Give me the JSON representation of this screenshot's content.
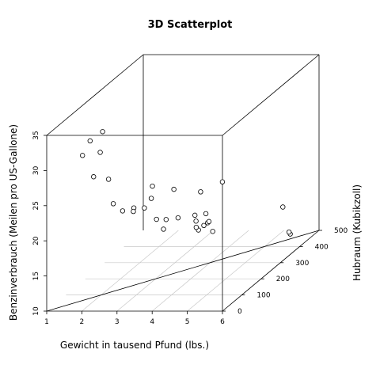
{
  "chart_data": {
    "type": "scatter",
    "projection": "3d",
    "title": "3D Scatterplot",
    "xlabel": "Gewicht in tausend Pfund (lbs.)",
    "ylabel": "Benzinverbrauch (Meilen pro US-Gallone)",
    "zlabel": "Hubraum (Kubikzoll)",
    "xlim": [
      1,
      6
    ],
    "ylim": [
      10,
      35
    ],
    "zlim": [
      0,
      500
    ],
    "x_ticks": [
      "1",
      "2",
      "3",
      "4",
      "5",
      "6"
    ],
    "y_ticks": [
      "10",
      "15",
      "20",
      "25",
      "30",
      "35"
    ],
    "z_ticks": [
      "0",
      "100",
      "200",
      "300",
      "400",
      "500"
    ],
    "grid": "x-depth floor grid",
    "points": [
      {
        "x": 2.2,
        "y": 33.9,
        "z": 71
      },
      {
        "x": 1.6,
        "y": 30.4,
        "z": 76
      },
      {
        "x": 1.8,
        "y": 32.4,
        "z": 79
      },
      {
        "x": 2.0,
        "y": 30.4,
        "z": 95
      },
      {
        "x": 1.9,
        "y": 27.3,
        "z": 79
      },
      {
        "x": 2.1,
        "y": 26.0,
        "z": 120
      },
      {
        "x": 2.3,
        "y": 22.8,
        "z": 108
      },
      {
        "x": 2.6,
        "y": 21.0,
        "z": 160
      },
      {
        "x": 2.9,
        "y": 21.0,
        "z": 160
      },
      {
        "x": 3.2,
        "y": 21.4,
        "z": 258
      },
      {
        "x": 3.2,
        "y": 22.8,
        "z": 141
      },
      {
        "x": 3.2,
        "y": 19.2,
        "z": 168
      },
      {
        "x": 3.4,
        "y": 17.8,
        "z": 168
      },
      {
        "x": 3.2,
        "y": 24.4,
        "z": 147
      },
      {
        "x": 2.5,
        "y": 21.5,
        "z": 120
      },
      {
        "x": 3.4,
        "y": 18.7,
        "z": 360
      },
      {
        "x": 3.5,
        "y": 18.1,
        "z": 225
      },
      {
        "x": 3.6,
        "y": 14.3,
        "z": 360
      },
      {
        "x": 3.8,
        "y": 15.2,
        "z": 304
      },
      {
        "x": 3.5,
        "y": 15.5,
        "z": 318
      },
      {
        "x": 3.8,
        "y": 13.3,
        "z": 350
      },
      {
        "x": 3.8,
        "y": 19.2,
        "z": 400
      },
      {
        "x": 4.1,
        "y": 16.4,
        "z": 276
      },
      {
        "x": 3.7,
        "y": 17.3,
        "z": 276
      },
      {
        "x": 3.8,
        "y": 15.2,
        "z": 276
      },
      {
        "x": 3.6,
        "y": 15.8,
        "z": 351
      },
      {
        "x": 3.6,
        "y": 19.7,
        "z": 145
      },
      {
        "x": 5.3,
        "y": 14.7,
        "z": 440
      },
      {
        "x": 5.4,
        "y": 10.4,
        "z": 460
      },
      {
        "x": 5.3,
        "y": 10.4,
        "z": 472
      },
      {
        "x": 3.6,
        "y": 15.0,
        "z": 301
      },
      {
        "x": 2.8,
        "y": 21.4,
        "z": 121
      }
    ]
  }
}
